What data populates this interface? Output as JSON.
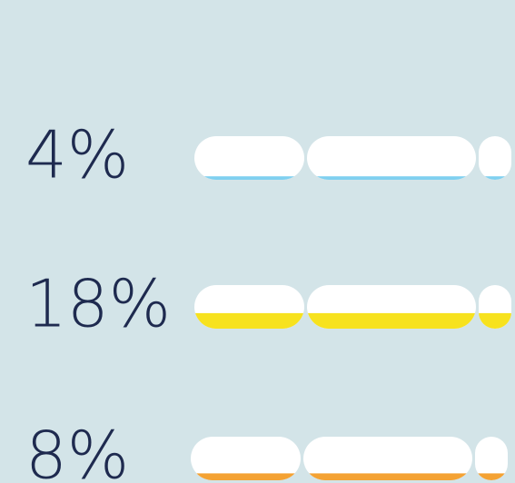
{
  "chart_data": {
    "type": "tube",
    "values": [
      4,
      18,
      8
    ],
    "value_labels": [
      "4%",
      "18%",
      "8%"
    ],
    "colors": [
      "#7fd0f0",
      "#f7e21e",
      "#f4a233"
    ]
  }
}
